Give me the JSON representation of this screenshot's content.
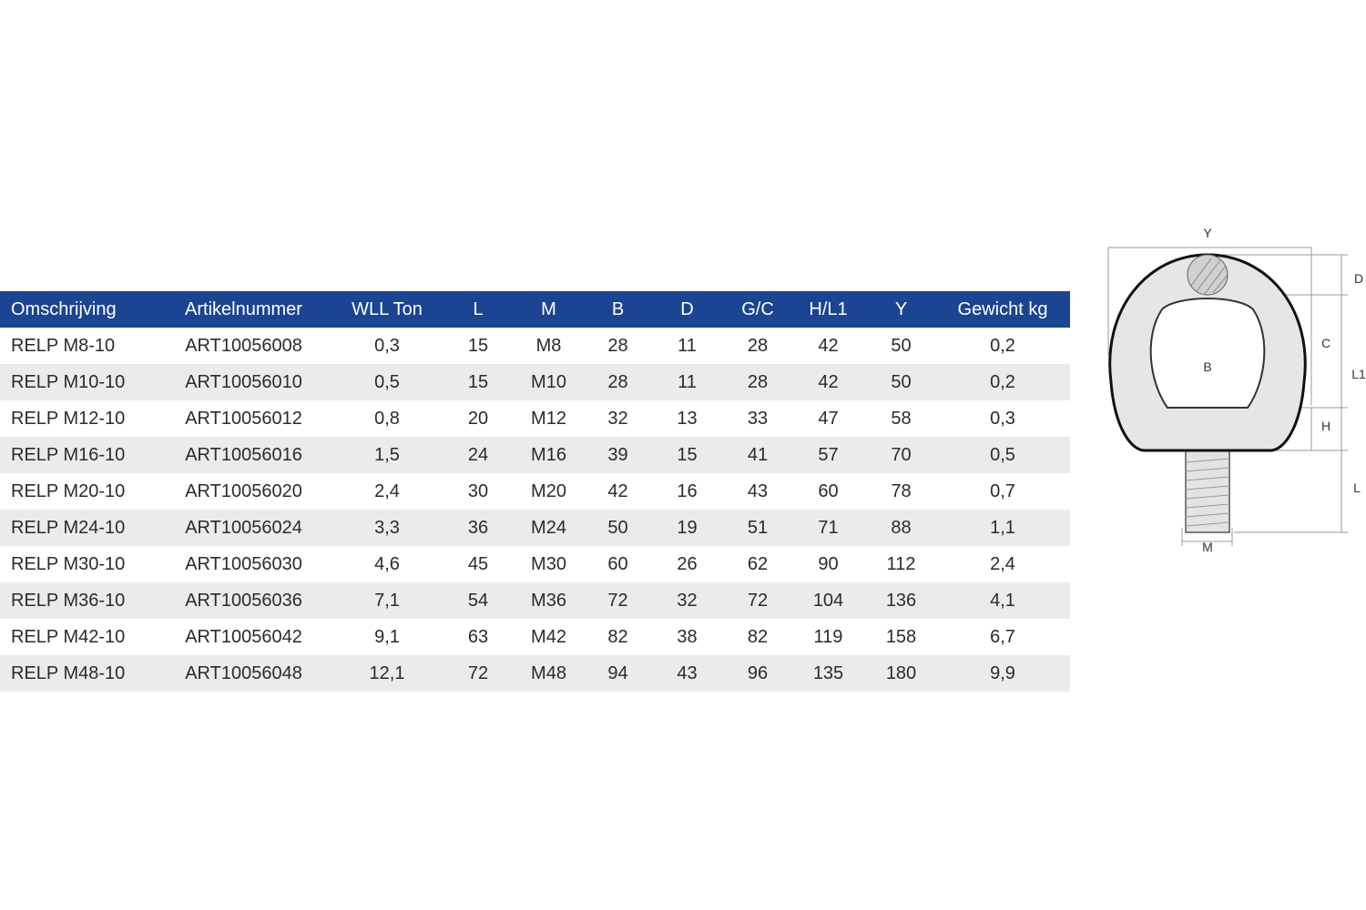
{
  "table": {
    "headers": [
      "Omschrijving",
      "Artikelnummer",
      "WLL Ton",
      "L",
      "M",
      "B",
      "D",
      "G/C",
      "H/L1",
      "Y",
      "Gewicht kg"
    ],
    "rows": [
      [
        "RELP M8-10",
        "ART10056008",
        "0,3",
        "15",
        "M8",
        "28",
        "11",
        "28",
        "42",
        "50",
        "0,2"
      ],
      [
        "RELP M10-10",
        "ART10056010",
        "0,5",
        "15",
        "M10",
        "28",
        "11",
        "28",
        "42",
        "50",
        "0,2"
      ],
      [
        "RELP M12-10",
        "ART10056012",
        "0,8",
        "20",
        "M12",
        "32",
        "13",
        "33",
        "47",
        "58",
        "0,3"
      ],
      [
        "RELP M16-10",
        "ART10056016",
        "1,5",
        "24",
        "M16",
        "39",
        "15",
        "41",
        "57",
        "70",
        "0,5"
      ],
      [
        "RELP M20-10",
        "ART10056020",
        "2,4",
        "30",
        "M20",
        "42",
        "16",
        "43",
        "60",
        "78",
        "0,7"
      ],
      [
        "RELP M24-10",
        "ART10056024",
        "3,3",
        "36",
        "M24",
        "50",
        "19",
        "51",
        "71",
        "88",
        "1,1"
      ],
      [
        "RELP M30-10",
        "ART10056030",
        "4,6",
        "45",
        "M30",
        "60",
        "26",
        "62",
        "90",
        "112",
        "2,4"
      ],
      [
        "RELP M36-10",
        "ART10056036",
        "7,1",
        "54",
        "M36",
        "72",
        "32",
        "72",
        "104",
        "136",
        "4,1"
      ],
      [
        "RELP M42-10",
        "ART10056042",
        "9,1",
        "63",
        "M42",
        "82",
        "38",
        "82",
        "119",
        "158",
        "6,7"
      ],
      [
        "RELP M48-10",
        "ART10056048",
        "12,1",
        "72",
        "M48",
        "94",
        "43",
        "96",
        "135",
        "180",
        "9,9"
      ]
    ]
  },
  "diagram": {
    "icon": "eye-bolt-drawing",
    "labels": {
      "y": "Y",
      "d": "D",
      "c": "C",
      "l1": "L1",
      "b": "B",
      "h": "H",
      "l": "L",
      "m": "M"
    }
  },
  "colors": {
    "header_bg": "#1b4592",
    "header_text": "#ffffff",
    "row_alt": "#ebebeb"
  }
}
